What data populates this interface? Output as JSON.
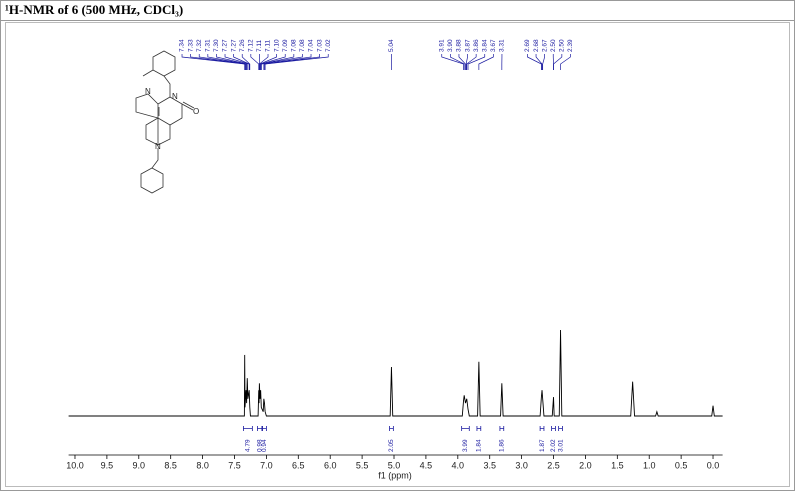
{
  "chart_data": {
    "type": "line",
    "title": "¹H-NMR of 6 (500 MHz, CDCl₃)",
    "x_label": "f1 (ppm)",
    "xlim": [
      10.1,
      -0.15
    ],
    "ylim": [
      0,
      100
    ],
    "xticks": [
      {
        "value": 10.0,
        "label": "10.0"
      },
      9.5,
      {
        "value": 9.0,
        "label": "9.0"
      },
      8.5,
      {
        "value": 8.0,
        "label": "8.0"
      },
      7.5,
      {
        "value": 7.0,
        "label": "7.0"
      },
      6.5,
      {
        "value": 6.0,
        "label": "6.0"
      },
      5.5,
      {
        "value": 5.0,
        "label": "5.0"
      },
      4.5,
      {
        "value": 4.0,
        "label": "4.0"
      },
      3.5,
      {
        "value": 3.0,
        "label": "3.0"
      },
      2.5,
      {
        "value": 2.0,
        "label": "2.0"
      },
      1.5,
      {
        "value": 1.0,
        "label": "1.0"
      },
      0.5,
      {
        "value": 0.0,
        "label": "0.0"
      }
    ],
    "color": "#000000",
    "annotation_color": "#1a1aa0",
    "x": [
      10.1,
      7.4,
      7.345,
      7.34,
      7.335,
      7.32,
      7.31,
      7.3,
      7.29,
      7.27,
      7.26,
      7.25,
      7.13,
      7.12,
      7.115,
      7.11,
      7.1,
      7.09,
      7.08,
      7.05,
      7.04,
      7.03,
      7.02,
      7.0,
      5.06,
      5.04,
      5.02,
      3.93,
      3.91,
      3.9,
      3.88,
      3.86,
      3.84,
      3.82,
      3.69,
      3.67,
      3.65,
      3.33,
      3.31,
      3.29,
      2.71,
      2.69,
      2.68,
      2.67,
      2.65,
      2.52,
      2.5,
      2.49,
      2.41,
      2.39,
      2.37,
      1.29,
      1.26,
      1.23,
      0.9,
      0.88,
      0.86,
      0.02,
      0.0,
      -0.02,
      -0.15
    ],
    "values": [
      0,
      0,
      0,
      71,
      10,
      30,
      15,
      44,
      20,
      30,
      10,
      0,
      0,
      30,
      15,
      38,
      20,
      30,
      10,
      5,
      20,
      15,
      5,
      0,
      0,
      57,
      0,
      0,
      18,
      24,
      15,
      20,
      8,
      0,
      0,
      63,
      0,
      0,
      38,
      0,
      0,
      22,
      30,
      20,
      0,
      0,
      22,
      0,
      0,
      100,
      0,
      0,
      40,
      0,
      0,
      5,
      0,
      0,
      12,
      0,
      0
    ],
    "peak_labels": [
      7.34,
      7.33,
      7.32,
      7.31,
      {
        "value": 7.3,
        "label": "7.30"
      },
      7.27,
      7.27,
      7.26,
      7.12,
      7.11,
      7.11,
      {
        "value": 7.1,
        "label": "7.10"
      },
      7.09,
      7.08,
      7.08,
      7.04,
      7.03,
      7.02,
      5.04,
      3.91,
      {
        "value": 3.9,
        "label": "3.90"
      },
      3.88,
      3.87,
      3.86,
      3.84,
      3.67,
      3.31,
      2.69,
      2.68,
      2.67,
      {
        "value": 2.5,
        "label": "2.50"
      },
      {
        "value": 2.5,
        "label": "2.50"
      },
      2.39
    ],
    "integrals": [
      {
        "value": 4.79,
        "range": [
          7.36,
          7.22
        ]
      },
      {
        "value": 0.98,
        "range": [
          7.14,
          7.07
        ]
      },
      {
        "value": 0.94,
        "range": [
          7.06,
          7.0
        ]
      },
      {
        "value": 2.05,
        "range": [
          5.07,
          5.01
        ]
      },
      {
        "value": 3.99,
        "range": [
          3.94,
          3.82
        ]
      },
      {
        "value": 1.84,
        "range": [
          3.7,
          3.64
        ]
      },
      {
        "value": 1.86,
        "range": [
          3.34,
          3.28
        ]
      },
      {
        "value": 1.87,
        "range": [
          2.71,
          2.65
        ]
      },
      {
        "value": 2.02,
        "range": [
          2.53,
          2.47
        ]
      },
      {
        "value": 3.01,
        "range": [
          2.42,
          2.36
        ]
      }
    ],
    "structure_labels": [
      "N",
      "N",
      "O",
      "N"
    ]
  }
}
